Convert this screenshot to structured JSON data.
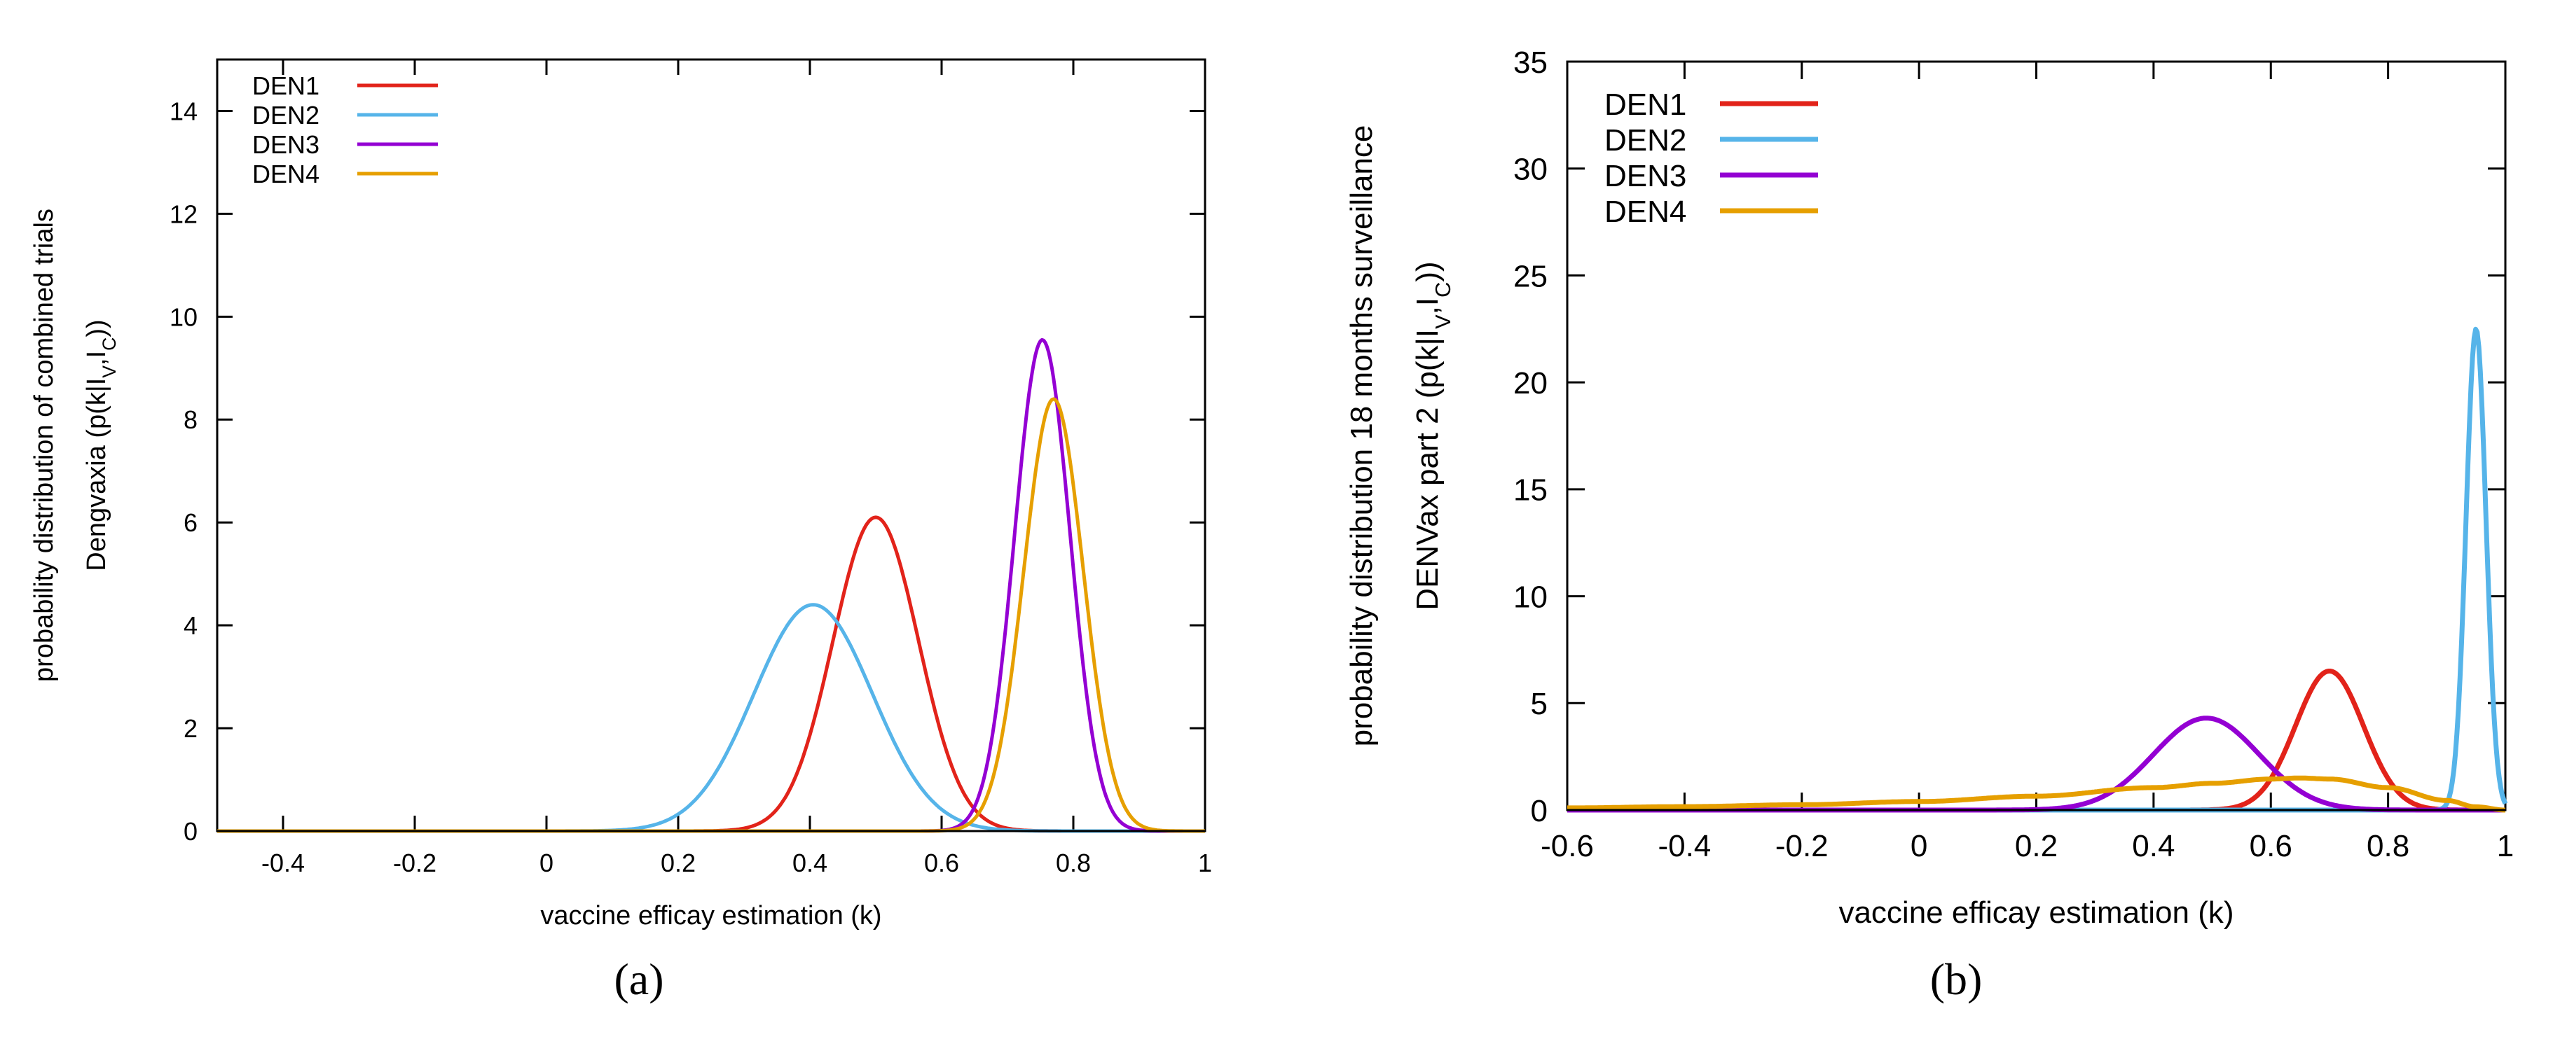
{
  "chart_data": [
    {
      "type": "line",
      "panel_label": "(a)",
      "title": "",
      "xlabel": "vaccine efficay estimation (k)",
      "ylabel_lines": [
        "probability distribution of combined trials",
        "Dengvaxia (p(k|I",
        "V",
        ",I",
        "C",
        "))"
      ],
      "xlim": [
        -0.5,
        1.0
      ],
      "ylim": [
        0,
        15
      ],
      "xticks": [
        -0.4,
        -0.2,
        0,
        0.2,
        0.4,
        0.6,
        0.8,
        1
      ],
      "xtick_labels": [
        "-0.4",
        "-0.2",
        "0",
        "0.2",
        "0.4",
        "0.6",
        "0.8",
        "1"
      ],
      "yticks": [
        0,
        2,
        4,
        6,
        8,
        10,
        12,
        14
      ],
      "ytick_labels": [
        "0",
        "2",
        "4",
        "6",
        "8",
        "10",
        "12",
        "14"
      ],
      "legend_position": "top-left",
      "grid": false,
      "series": [
        {
          "name": "DEN1",
          "color": "#e2231a",
          "shape": "gaussian",
          "mean": 0.5,
          "sd": 0.065,
          "peak": 6.1
        },
        {
          "name": "DEN2",
          "color": "#56b4e9",
          "shape": "gaussian",
          "mean": 0.405,
          "sd": 0.09,
          "peak": 4.4
        },
        {
          "name": "DEN3",
          "color": "#9400d3",
          "shape": "gaussian",
          "mean": 0.753,
          "sd": 0.042,
          "peak": 9.55
        },
        {
          "name": "DEN4",
          "color": "#e69f00",
          "shape": "gaussian",
          "mean": 0.77,
          "sd": 0.045,
          "peak": 8.4
        }
      ]
    },
    {
      "type": "line",
      "panel_label": "(b)",
      "title": "",
      "xlabel": "vaccine efficay estimation (k)",
      "ylabel_lines": [
        "probability distribution 18 months surveillance",
        "DENVax part 2 (p(k|I",
        "V",
        ",I",
        "C",
        "))"
      ],
      "xlim": [
        -0.6,
        1.0
      ],
      "ylim": [
        0,
        35
      ],
      "xticks": [
        -0.6,
        -0.4,
        -0.2,
        0,
        0.2,
        0.4,
        0.6,
        0.8,
        1
      ],
      "xtick_labels": [
        "-0.6",
        "-0.4",
        "-0.2",
        "0",
        "0.2",
        "0.4",
        "0.6",
        "0.8",
        "1"
      ],
      "yticks": [
        0,
        5,
        10,
        15,
        20,
        25,
        30,
        35
      ],
      "ytick_labels": [
        "0",
        "5",
        "10",
        "15",
        "20",
        "25",
        "30",
        "35"
      ],
      "legend_position": "top-left",
      "grid": false,
      "series": [
        {
          "name": "DEN1",
          "color": "#e2231a",
          "shape": "gaussian",
          "mean": 0.7,
          "sd": 0.058,
          "peak": 6.5
        },
        {
          "name": "DEN2",
          "color": "#56b4e9",
          "shape": "gaussian",
          "mean": 0.95,
          "sd": 0.017,
          "peak": 22.5
        },
        {
          "name": "DEN3",
          "color": "#9400d3",
          "shape": "gaussian",
          "mean": 0.49,
          "sd": 0.09,
          "peak": 4.3
        },
        {
          "name": "DEN4",
          "color": "#e69f00",
          "shape": "broad",
          "points": [
            [
              -0.6,
              0.1
            ],
            [
              -0.4,
              0.16
            ],
            [
              -0.2,
              0.25
            ],
            [
              0,
              0.4
            ],
            [
              0.2,
              0.65
            ],
            [
              0.4,
              1.05
            ],
            [
              0.5,
              1.25
            ],
            [
              0.6,
              1.45
            ],
            [
              0.65,
              1.5
            ],
            [
              0.7,
              1.45
            ],
            [
              0.8,
              1.05
            ],
            [
              0.9,
              0.45
            ],
            [
              0.95,
              0.15
            ],
            [
              1.0,
              0.0
            ]
          ]
        }
      ]
    }
  ]
}
